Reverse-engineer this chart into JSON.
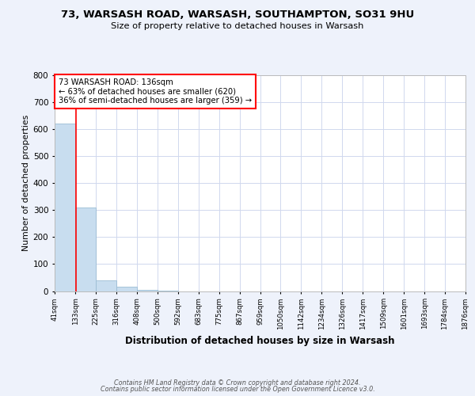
{
  "title_line1": "73, WARSASH ROAD, WARSASH, SOUTHAMPTON, SO31 9HU",
  "title_line2": "Size of property relative to detached houses in Warsash",
  "xlabel": "Distribution of detached houses by size in Warsash",
  "ylabel": "Number of detached properties",
  "footer_line1": "Contains HM Land Registry data © Crown copyright and database right 2024.",
  "footer_line2": "Contains public sector information licensed under the Open Government Licence v3.0.",
  "bin_labels": [
    "41sqm",
    "133sqm",
    "225sqm",
    "316sqm",
    "408sqm",
    "500sqm",
    "592sqm",
    "683sqm",
    "775sqm",
    "867sqm",
    "959sqm",
    "1050sqm",
    "1142sqm",
    "1234sqm",
    "1326sqm",
    "1417sqm",
    "1509sqm",
    "1601sqm",
    "1693sqm",
    "1784sqm",
    "1876sqm"
  ],
  "bar_values": [
    620,
    310,
    40,
    15,
    5,
    2,
    0,
    0,
    0,
    0,
    0,
    0,
    0,
    0,
    0,
    0,
    0,
    0,
    0,
    0
  ],
  "bar_color": "#c8ddef",
  "bar_edge_color": "#9bbdd4",
  "property_line_label": "73 WARSASH ROAD: 136sqm",
  "annotation_line1": "← 63% of detached houses are smaller (620)",
  "annotation_line2": "36% of semi-detached houses are larger (359) →",
  "annotation_box_color": "white",
  "annotation_box_edge": "red",
  "vline_color": "red",
  "ylim": [
    0,
    800
  ],
  "yticks": [
    0,
    100,
    200,
    300,
    400,
    500,
    600,
    700,
    800
  ],
  "background_color": "#eef2fb",
  "plot_bg_color": "white",
  "grid_color": "#d0d8ee"
}
